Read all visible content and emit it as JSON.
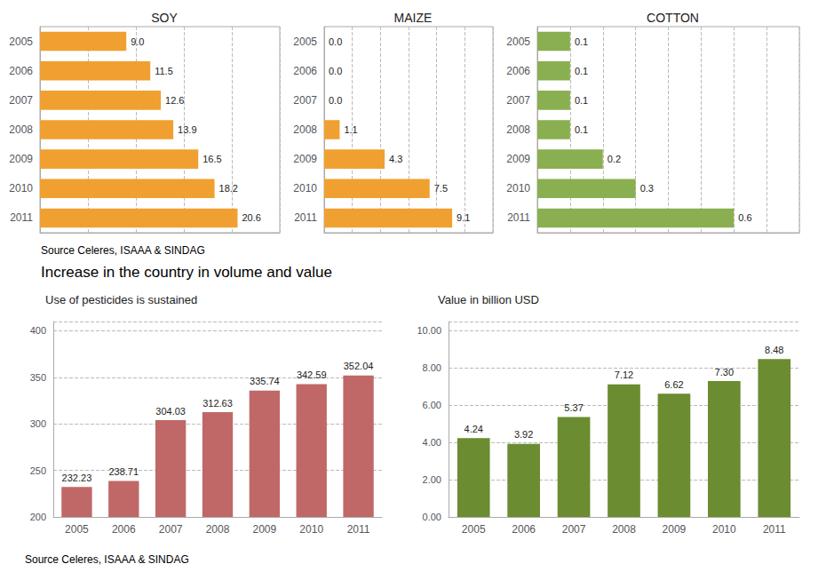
{
  "chart_data": [
    {
      "type": "bar",
      "orientation": "horizontal",
      "title": "SOY",
      "categories": [
        "2005",
        "2006",
        "2007",
        "2008",
        "2009",
        "2010",
        "2011"
      ],
      "values": [
        9.0,
        11.5,
        12.6,
        13.9,
        16.5,
        18.2,
        20.6
      ],
      "value_labels": [
        "9.0",
        "11.5",
        "12.6",
        "13.9",
        "16.5",
        "18.2",
        "20.6"
      ],
      "color": "#F0A030",
      "xlim": [
        0,
        25
      ],
      "xticks": [
        0,
        5,
        10,
        15,
        20,
        25
      ],
      "grid": true,
      "tick_labels": "y",
      "data_labels": true,
      "annotation": "Source Celeres, ISAAA & SINDAG"
    },
    {
      "type": "bar",
      "orientation": "horizontal",
      "title": "MAIZE",
      "categories": [
        "2005",
        "2006",
        "2007",
        "2008",
        "2009",
        "2010",
        "2011"
      ],
      "values": [
        0.0,
        0.0,
        0.0,
        1.1,
        4.3,
        7.5,
        9.1
      ],
      "value_labels": [
        "0.0",
        "0.0",
        "0.0",
        "1.1",
        "4.3",
        "7.5",
        "9.1"
      ],
      "color": "#F0A030",
      "xlim": [
        0,
        12
      ],
      "xticks": [
        0,
        2,
        4,
        6,
        8,
        10,
        12
      ],
      "grid": true,
      "tick_labels": "y",
      "data_labels": true
    },
    {
      "type": "bar",
      "orientation": "horizontal",
      "title": "COTTON",
      "categories": [
        "2005",
        "2006",
        "2007",
        "2008",
        "2009",
        "2010",
        "2011"
      ],
      "values": [
        0.1,
        0.1,
        0.1,
        0.1,
        0.2,
        0.3,
        0.6
      ],
      "value_labels": [
        "0.1",
        "0.1",
        "0.1",
        "0.1",
        "0.2",
        "0.3",
        "0.6"
      ],
      "color": "#8AAF50",
      "xlim": [
        0,
        0.8
      ],
      "xticks": [
        0,
        0.1,
        0.2,
        0.3,
        0.4,
        0.5,
        0.6,
        0.7,
        0.8
      ],
      "grid": true,
      "tick_labels": "y",
      "data_labels": true
    },
    {
      "type": "bar",
      "title": "Use of pesticides is sustained",
      "annotation": "Increase in the country in volume and value",
      "categories": [
        "2005",
        "2006",
        "2007",
        "2008",
        "2009",
        "2010",
        "2011"
      ],
      "values": [
        232.23,
        238.71,
        304.03,
        312.63,
        335.74,
        342.59,
        352.04
      ],
      "color": "#C06868",
      "ylim": [
        200,
        410
      ],
      "yticks": [
        200,
        250,
        300,
        350,
        400
      ],
      "grid": true,
      "data_labels": true
    },
    {
      "type": "bar",
      "title": "Value in billion USD",
      "annotation": "Source Celeres, ISAAA & SINDAG",
      "categories": [
        "2005",
        "2006",
        "2007",
        "2008",
        "2009",
        "2010",
        "2011"
      ],
      "values": [
        4.24,
        3.92,
        5.37,
        7.12,
        6.62,
        7.3,
        8.48
      ],
      "value_labels": [
        "4.24",
        "3.92",
        "5.37",
        "7.12",
        "6.62",
        "7.30",
        "8.48"
      ],
      "color": "#6B8C30",
      "ylim": [
        0,
        10.5
      ],
      "yticks": [
        {
          "value": 0,
          "label": "0.00"
        },
        {
          "value": 2,
          "label": "2.00"
        },
        {
          "value": 4,
          "label": "4.00"
        },
        {
          "value": 6,
          "label": "6.00"
        },
        {
          "value": 8,
          "label": "8.00"
        },
        {
          "value": 10,
          "label": "10.00"
        }
      ],
      "grid": true,
      "data_labels": true
    }
  ]
}
